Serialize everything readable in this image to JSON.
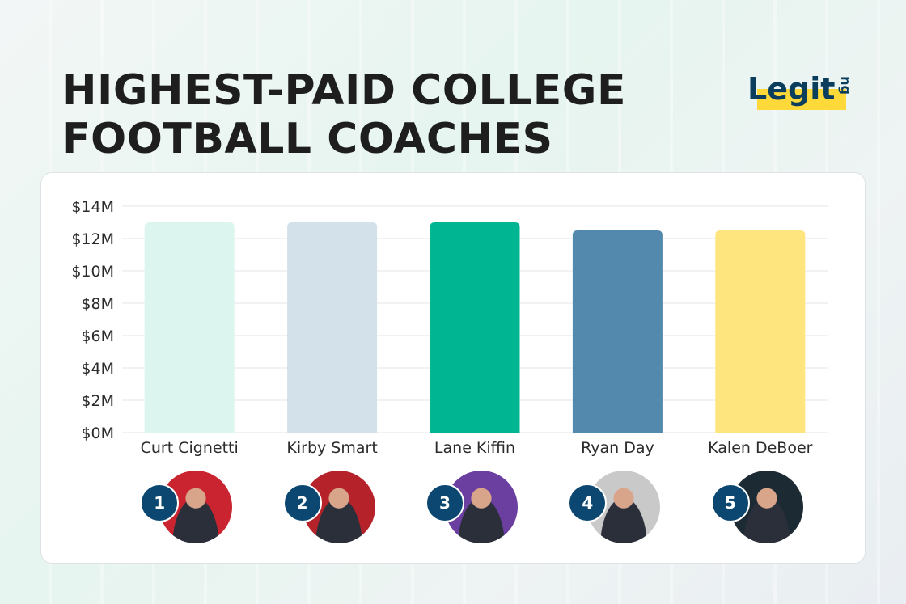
{
  "title": {
    "line1": "HIGHEST-PAID COLLEGE",
    "line2": "FOOTBALL COACHES"
  },
  "logo": {
    "word": "Legit",
    "suffix": "ng"
  },
  "chart_data": {
    "type": "bar",
    "categories": [
      "Curt Cignetti",
      "Kirby Smart",
      "Lane Kiffin",
      "Ryan Day",
      "Kalen DeBoer"
    ],
    "values": [
      13.0,
      13.0,
      13.0,
      12.5,
      12.5
    ],
    "colors": [
      "#dcf6ef",
      "#d3e1eb",
      "#00b592",
      "#5289ad",
      "#ffe57d"
    ],
    "y_tick_values": [
      0,
      2,
      4,
      6,
      8,
      10,
      12,
      14
    ],
    "y_tick_labels": [
      "$0M",
      "$2M",
      "$4M",
      "$6M",
      "$8M",
      "$10M",
      "$12M",
      "$14M"
    ],
    "ylim": [
      0,
      14
    ],
    "grid": true,
    "ranks": [
      "1",
      "2",
      "3",
      "4",
      "5"
    ],
    "avatar_colors": [
      "#c9242f",
      "#b6222a",
      "#6b3fa0",
      "#c9c9c9",
      "#1c2a33"
    ]
  }
}
